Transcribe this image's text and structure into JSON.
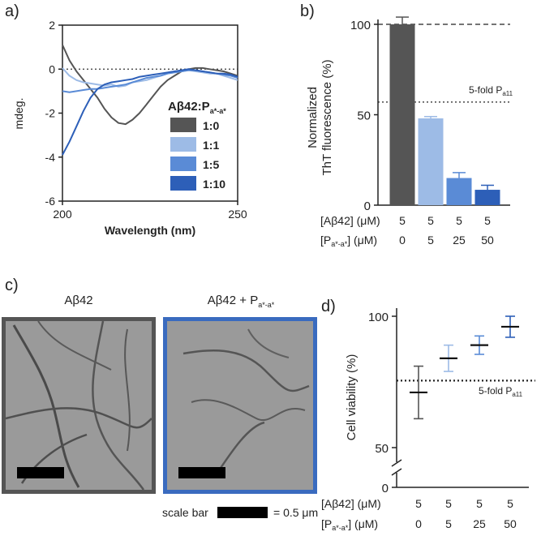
{
  "colors": {
    "ratio_1_0": "#555555",
    "ratio_1_1": "#9dbbe6",
    "ratio_1_5": "#5a8bd6",
    "ratio_1_10": "#2d5fb8"
  },
  "panel_a": {
    "letter": "a)",
    "legend_title": "Aβ42:P",
    "legend_title_sub": "a*-a*",
    "chart_data": {
      "type": "line",
      "xlabel": "Wavelength (nm)",
      "ylabel": "mdeg.",
      "xlim": [
        200,
        250
      ],
      "ylim": [
        -6,
        2
      ],
      "xticks": [
        "200",
        "250"
      ],
      "yticks": [
        "2",
        "0",
        "-2",
        "-4",
        "-6"
      ],
      "reference_line": 0,
      "legend_position": "right",
      "series": [
        {
          "name": "1:0",
          "color_key": "ratio_1_0",
          "x": [
            200,
            202,
            204,
            206,
            208,
            210,
            212,
            214,
            216,
            218,
            220,
            222,
            224,
            226,
            228,
            230,
            232,
            234,
            236,
            238,
            240,
            242,
            244,
            246,
            248,
            250
          ],
          "y": [
            1.1,
            0.4,
            -0.1,
            -0.5,
            -0.9,
            -1.3,
            -1.8,
            -2.2,
            -2.45,
            -2.5,
            -2.3,
            -2.0,
            -1.6,
            -1.2,
            -0.8,
            -0.5,
            -0.3,
            -0.1,
            0.0,
            0.05,
            0.05,
            0.0,
            -0.05,
            -0.1,
            -0.2,
            -0.3
          ]
        },
        {
          "name": "1:1",
          "color_key": "ratio_1_1",
          "x": [
            200,
            202,
            204,
            206,
            208,
            210,
            212,
            214,
            216,
            218,
            220,
            222,
            224,
            226,
            228,
            230,
            232,
            234,
            236,
            238,
            240,
            242,
            244,
            246,
            248,
            250
          ],
          "y": [
            0.05,
            -0.3,
            -0.5,
            -0.6,
            -0.65,
            -0.7,
            -0.75,
            -0.7,
            -0.8,
            -0.75,
            -0.6,
            -0.55,
            -0.5,
            -0.4,
            -0.3,
            -0.2,
            -0.15,
            -0.1,
            -0.05,
            -0.1,
            -0.15,
            -0.2,
            -0.2,
            -0.3,
            -0.4,
            -0.5
          ]
        },
        {
          "name": "1:5",
          "color_key": "ratio_1_5",
          "x": [
            200,
            202,
            204,
            206,
            208,
            210,
            212,
            214,
            216,
            218,
            220,
            222,
            224,
            226,
            228,
            230,
            232,
            234,
            236,
            238,
            240,
            242,
            244,
            246,
            248,
            250
          ],
          "y": [
            -1.0,
            -1.05,
            -1.0,
            -0.95,
            -0.9,
            -0.9,
            -0.85,
            -0.8,
            -0.75,
            -0.7,
            -0.6,
            -0.5,
            -0.4,
            -0.35,
            -0.3,
            -0.2,
            -0.15,
            -0.1,
            -0.05,
            -0.05,
            -0.1,
            -0.15,
            -0.2,
            -0.25,
            -0.3,
            -0.4
          ]
        },
        {
          "name": "1:10",
          "color_key": "ratio_1_10",
          "x": [
            200,
            202,
            204,
            206,
            208,
            210,
            212,
            214,
            216,
            218,
            220,
            222,
            224,
            226,
            228,
            230,
            232,
            234,
            236,
            238,
            240,
            242,
            244,
            246,
            248,
            250
          ],
          "y": [
            -3.9,
            -3.3,
            -2.6,
            -1.9,
            -1.3,
            -0.9,
            -0.7,
            -0.6,
            -0.55,
            -0.5,
            -0.45,
            -0.35,
            -0.3,
            -0.25,
            -0.2,
            -0.15,
            -0.1,
            -0.05,
            0.0,
            -0.05,
            -0.1,
            -0.15,
            -0.2,
            -0.2,
            -0.25,
            -0.35
          ]
        }
      ]
    }
  },
  "panel_b": {
    "letter": "b)",
    "ylabel_line1": "Normalized",
    "ylabel_line2": "ThT fluorescence (%)",
    "annotation": "5-fold P",
    "annotation_sub": "a11",
    "row1_label": "[Aβ42] (μM)",
    "row2_label_pre": "[P",
    "row2_label_sub": "a*-a*",
    "row2_label_post": "] (μM)",
    "chart_data": {
      "type": "bar",
      "categories": [
        "1:0",
        "1:1",
        "1:5",
        "1:10"
      ],
      "abeta42_uM": [
        "5",
        "5",
        "5",
        "5"
      ],
      "peptide_uM": [
        "0",
        "5",
        "25",
        "50"
      ],
      "values": [
        100,
        48,
        15,
        8.5
      ],
      "errors": [
        4,
        1,
        3,
        2.5
      ],
      "ylim": [
        0,
        105
      ],
      "yticks": [
        "0",
        "50",
        "100"
      ],
      "reference_lines": [
        100,
        57
      ],
      "grid": false
    }
  },
  "panel_c": {
    "letter": "c)",
    "title_left": "Aβ42",
    "title_right_pre": "Aβ42 + P",
    "title_right_sub": "a*-a*",
    "scale_bar_label": "scale bar",
    "scale_bar_value": "= 0.5 μm"
  },
  "panel_d": {
    "letter": "d)",
    "ylabel": "Cell viability (%)",
    "annotation": "5-fold P",
    "annotation_sub": "a11",
    "row1_label": "[Aβ42] (μM)",
    "row2_label_pre": "[P",
    "row2_label_sub": "a*-a*",
    "row2_label_post": "] (μM)",
    "chart_data": {
      "type": "scatter",
      "categories": [
        "1:0",
        "1:1",
        "1:5",
        "1:10"
      ],
      "abeta42_uM": [
        "5",
        "5",
        "5",
        "5"
      ],
      "peptide_uM": [
        "0",
        "5",
        "25",
        "50"
      ],
      "values": [
        71,
        84,
        89,
        96
      ],
      "errors": [
        10,
        5,
        3.5,
        4
      ],
      "ylim": [
        50,
        100
      ],
      "yticks": [
        "0",
        "50",
        "100"
      ],
      "axis_break": true,
      "reference_line": 75.5
    }
  }
}
